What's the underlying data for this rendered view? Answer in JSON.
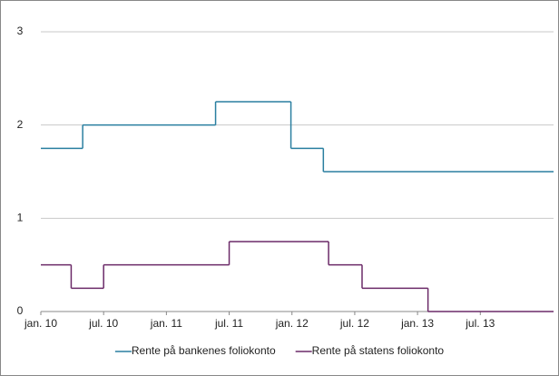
{
  "chart_data": {
    "type": "line",
    "drawstyle": "steps-post",
    "xlim": [
      0,
      49
    ],
    "xticks": [
      {
        "value": 0,
        "label": "jan. 10"
      },
      {
        "value": 6,
        "label": "jul. 10"
      },
      {
        "value": 12,
        "label": "jan. 11"
      },
      {
        "value": 18,
        "label": "jul. 11"
      },
      {
        "value": 24,
        "label": "jan. 12"
      },
      {
        "value": 30,
        "label": "jul. 12"
      },
      {
        "value": 36,
        "label": "jan. 13"
      },
      {
        "value": 42,
        "label": "jul. 13"
      }
    ],
    "ylim": [
      0,
      3
    ],
    "yticks": [
      0,
      1,
      2,
      3
    ],
    "grid": true,
    "legend": "bottom",
    "series": [
      {
        "name": "Rente på bankenes foliokonto",
        "color": "#2a7fa0",
        "x": [
          0,
          4,
          16.7,
          23.9,
          27
        ],
        "values": [
          1.75,
          2,
          2.25,
          1.75,
          1.5
        ]
      },
      {
        "name": "Rente på statens foliokonto",
        "color": "#6b2a68",
        "x": [
          0,
          2.9,
          6,
          18,
          27.5,
          30.7,
          37
        ],
        "values": [
          0.5,
          0.25,
          0.5,
          0.75,
          0.5,
          0.25,
          0
        ]
      }
    ]
  }
}
